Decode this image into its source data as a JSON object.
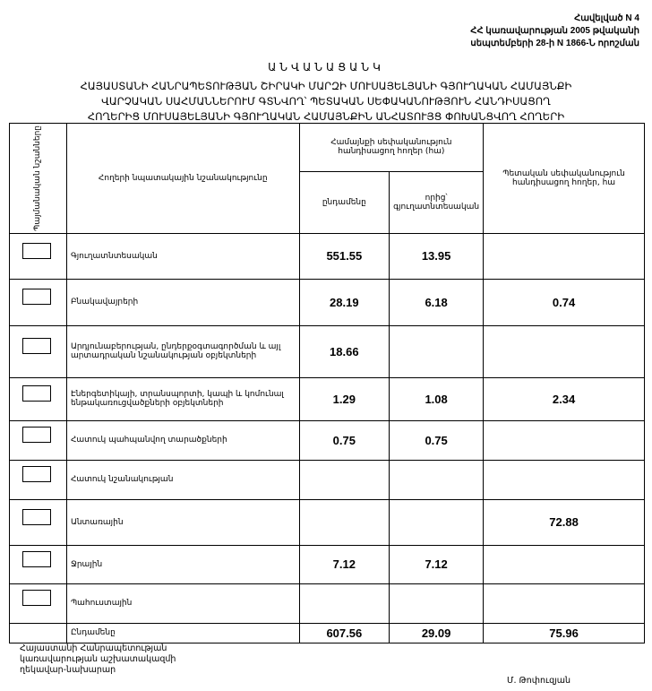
{
  "annex": [
    "Հավելված N 4",
    "ՀՀ կառավարության 2005 թվականի",
    "սեպտեմբերի 28-ի N 1866-Ն որոշման"
  ],
  "title": "ԱՆՎԱՆԱՑԱՆԿ",
  "subtitle": [
    "ՀԱՅԱՍՏԱՆԻ ՀԱՆՐԱՊԵՏՈՒԹՅԱՆ ՇԻՐԱԿԻ ՄԱՐԶԻ ՄՈՒՍԱՅԵԼՅԱՆԻ ԳՅՈՒՂԱԿԱՆ ՀԱՄԱՅՆՔԻ",
    "ՎԱՐՉԱԿԱՆ ՍԱՀՄԱՆՆԵՐՈՒՄ ԳՏՆՎՈՂ՝ ՊԵՏԱԿԱՆ ՍԵՓԱԿԱՆՈՒԹՅՈՒՆ ՀԱՆԴԻՍԱՑՈՂ",
    "ՀՈՂԵՐԻՑ ՄՈՒՍԱՅԵԼՅԱՆԻ ԳՅՈՒՂԱԿԱՆ ՀԱՄԱՅՆՔԻՆ ԱՆՀԱՏՈՒՅՑ ՓՈԽԱՆՑՎՈՂ ՀՈՂԵՐԻ"
  ],
  "header": {
    "symbols": "Պայմանական նշանները",
    "purpose": "Հողերի նպատակային նշանակությունը",
    "community": "Համայնքի սեփականություն հանդիսացող հողեր (հա)",
    "total": "ընդամենը",
    "of_which": "որից՝ գյուղատնտեսական",
    "state": "Պետական սեփականություն հանդիսացող հողեր, հա"
  },
  "rows": [
    {
      "label": "Գյուղատնտեսական",
      "total": "551.55",
      "agri": "13.95",
      "state": ""
    },
    {
      "label": "Բնակավայրերի",
      "total": "28.19",
      "agri": "6.18",
      "state": "0.74"
    },
    {
      "label": "Արդյունաբերության, ընդերքօգտագործման և այլ արտադրական նշանակության օբյեկտների",
      "total": "18.66",
      "agri": "",
      "state": ""
    },
    {
      "label": "Էներգետիկայի, տրանսպորտի, կապի և կոմունալ ենթակառուցվածքների օբյեկտների",
      "total": "1.29",
      "agri": "1.08",
      "state": "2.34"
    },
    {
      "label": "Հատուկ պահպանվող տարածքների",
      "total": "0.75",
      "agri": "0.75",
      "state": ""
    },
    {
      "label": "Հատուկ նշանակության",
      "total": "",
      "agri": "",
      "state": ""
    },
    {
      "label": "Անտառային",
      "total": "",
      "agri": "",
      "state": "72.88"
    },
    {
      "label": "Ջրային",
      "total": "7.12",
      "agri": "7.12",
      "state": ""
    },
    {
      "label": "Պահուստային",
      "total": "",
      "agri": "",
      "state": ""
    }
  ],
  "totals": {
    "label": "Ընդամենը",
    "total": "607.56",
    "agri": "29.09",
    "state": "75.96"
  },
  "footer": {
    "lines": [
      "Հայաստանի Հանրապետության",
      "կառավարության աշխատակազմի",
      "ղեկավար-նախարար"
    ],
    "signer": "Մ. Թոփուզյան"
  }
}
